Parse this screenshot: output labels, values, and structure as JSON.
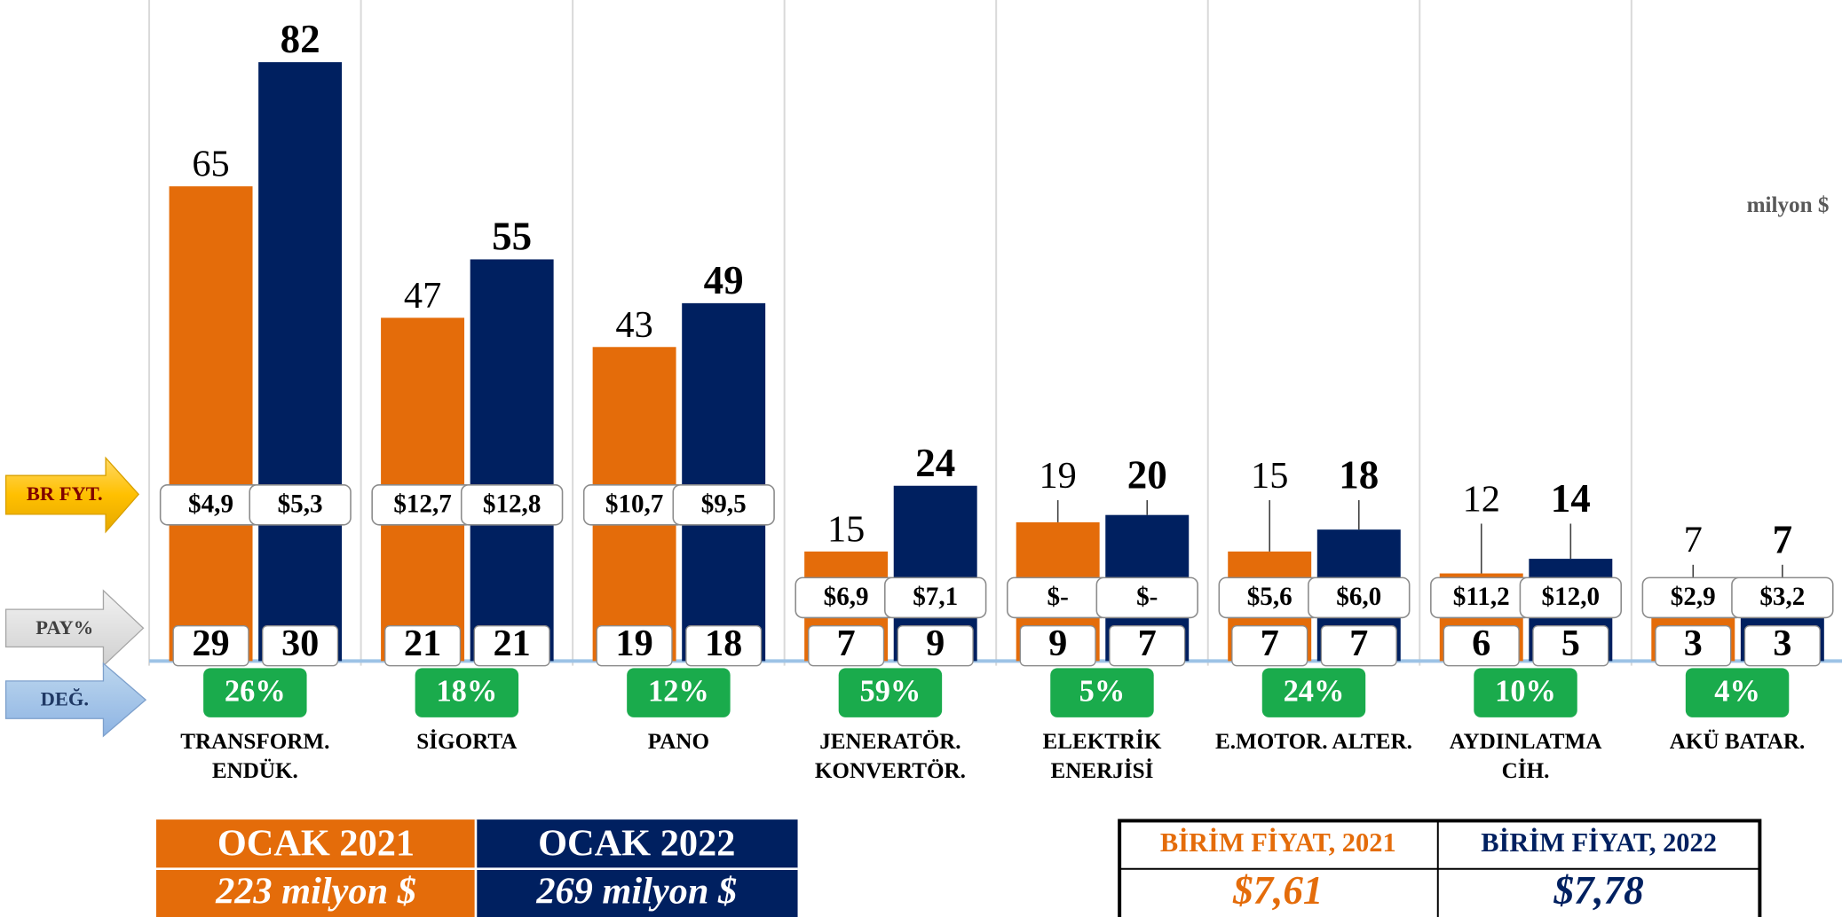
{
  "chart_data": {
    "type": "bar",
    "unit": "milyon $",
    "categories": [
      [
        "TRANSFORM.",
        "ENDÜK."
      ],
      [
        "SİGORTA"
      ],
      [
        "PANO"
      ],
      [
        "JENERATÖR.",
        "KONVERTÖR."
      ],
      [
        "ELEKTRİK",
        "ENERJİSİ"
      ],
      [
        "E.MOTOR. ALTER."
      ],
      [
        "AYDINLATMA",
        "CİH."
      ],
      [
        "AKÜ BATAR."
      ]
    ],
    "series": [
      {
        "name": "OCAK 2021",
        "color": "#e46c0a",
        "values": [
          65,
          47,
          43,
          15,
          19,
          15,
          12,
          7
        ],
        "unit_prices": [
          4.9,
          12.7,
          10.7,
          6.9,
          null,
          5.6,
          11.2,
          2.9
        ],
        "unit_price_labels": [
          "$4,9",
          "$12,7",
          "$10,7",
          "$6,9",
          "$-",
          "$5,6",
          "$11,2",
          "$2,9"
        ],
        "shares": [
          29,
          21,
          19,
          7,
          9,
          7,
          6,
          3
        ],
        "total": 223,
        "total_label": "223 milyon $",
        "avg_unit_price_header": "BİRİM FİYAT, 2021",
        "avg_unit_price": 7.61,
        "avg_unit_price_label": "$7,61"
      },
      {
        "name": "OCAK 2022",
        "color": "#002060",
        "values": [
          82,
          55,
          49,
          24,
          20,
          18,
          14,
          7
        ],
        "unit_prices": [
          5.3,
          12.8,
          9.5,
          7.1,
          null,
          6.0,
          12.0,
          3.2
        ],
        "unit_price_labels": [
          "$5,3",
          "$12,8",
          "$9,5",
          "$7,1",
          "$-",
          "$6,0",
          "$12,0",
          "$3,2"
        ],
        "shares": [
          30,
          21,
          18,
          9,
          7,
          7,
          5,
          3
        ],
        "total": 269,
        "total_label": "269 milyon $",
        "avg_unit_price_header": "BİRİM FİYAT, 2022",
        "avg_unit_price": 7.78,
        "avg_unit_price_label": "$7,78"
      }
    ],
    "change": {
      "values": [
        26,
        18,
        12,
        59,
        5,
        24,
        10,
        4
      ],
      "value_labels": [
        "26%",
        "18%",
        "12%",
        "59%",
        "5%",
        "24%",
        "10%",
        "4%"
      ]
    },
    "row_labels": {
      "unit_price": "BR FYT.",
      "share": "PAY%",
      "change": "DEĞ."
    }
  }
}
